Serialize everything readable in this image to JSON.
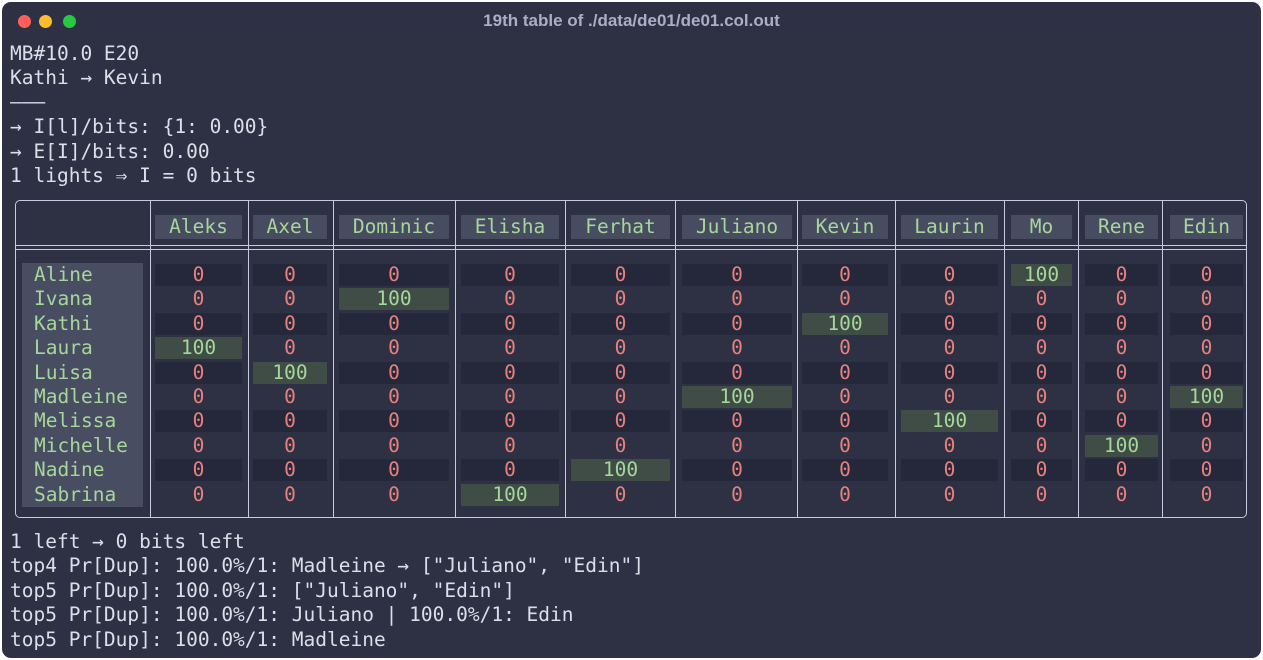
{
  "window": {
    "title": "19th table of ./data/de01/de01.col.out"
  },
  "pre_lines": [
    "MB#10.0 E20",
    "Kathi → Kevin",
    "———",
    "→ I[l]/bits: {1: 0.00}",
    "→ E[I]/bits: 0.00",
    "1 lights ⇒ I = 0 bits"
  ],
  "table": {
    "columns": [
      "Aleks",
      "Axel",
      "Dominic",
      "Elisha",
      "Ferhat",
      "Juliano",
      "Kevin",
      "Laurin",
      "Mo",
      "Rene",
      "Edin"
    ],
    "rows": [
      {
        "name": "Aline",
        "values": [
          "0",
          "0",
          "0",
          "0",
          "0",
          "0",
          "0",
          "0",
          "100",
          "0",
          "0"
        ]
      },
      {
        "name": "Ivana",
        "values": [
          "0",
          "0",
          "100",
          "0",
          "0",
          "0",
          "0",
          "0",
          "0",
          "0",
          "0"
        ]
      },
      {
        "name": "Kathi",
        "values": [
          "0",
          "0",
          "0",
          "0",
          "0",
          "0",
          "100",
          "0",
          "0",
          "0",
          "0"
        ]
      },
      {
        "name": "Laura",
        "values": [
          "100",
          "0",
          "0",
          "0",
          "0",
          "0",
          "0",
          "0",
          "0",
          "0",
          "0"
        ]
      },
      {
        "name": "Luisa",
        "values": [
          "0",
          "100",
          "0",
          "0",
          "0",
          "0",
          "0",
          "0",
          "0",
          "0",
          "0"
        ]
      },
      {
        "name": "Madleine",
        "values": [
          "0",
          "0",
          "0",
          "0",
          "0",
          "100",
          "0",
          "0",
          "0",
          "0",
          "100"
        ]
      },
      {
        "name": "Melissa",
        "values": [
          "0",
          "0",
          "0",
          "0",
          "0",
          "0",
          "0",
          "100",
          "0",
          "0",
          "0"
        ]
      },
      {
        "name": "Michelle",
        "values": [
          "0",
          "0",
          "0",
          "0",
          "0",
          "0",
          "0",
          "0",
          "0",
          "100",
          "0"
        ]
      },
      {
        "name": "Nadine",
        "values": [
          "0",
          "0",
          "0",
          "0",
          "100",
          "0",
          "0",
          "0",
          "0",
          "0",
          "0"
        ]
      },
      {
        "name": "Sabrina",
        "values": [
          "0",
          "0",
          "0",
          "100",
          "0",
          "0",
          "0",
          "0",
          "0",
          "0",
          "0"
        ]
      }
    ]
  },
  "post_lines": [
    "1 left → 0 bits left",
    "top4 Pr[Dup]: 100.0%/1: Madleine → [\"Juliano\", \"Edin\"]",
    "top5 Pr[Dup]: 100.0%/1: [\"Juliano\", \"Edin\"]",
    "top5 Pr[Dup]: 100.0%/1: Juliano | 100.0%/1: Edin",
    "top5 Pr[Dup]: 100.0%/1: Madleine"
  ],
  "colors": {
    "background": "#2d3143",
    "text": "#dcdfe9",
    "highlight_text": "#a6d69a",
    "zero_value": "#e7817d",
    "border": "#c7cbe0"
  }
}
